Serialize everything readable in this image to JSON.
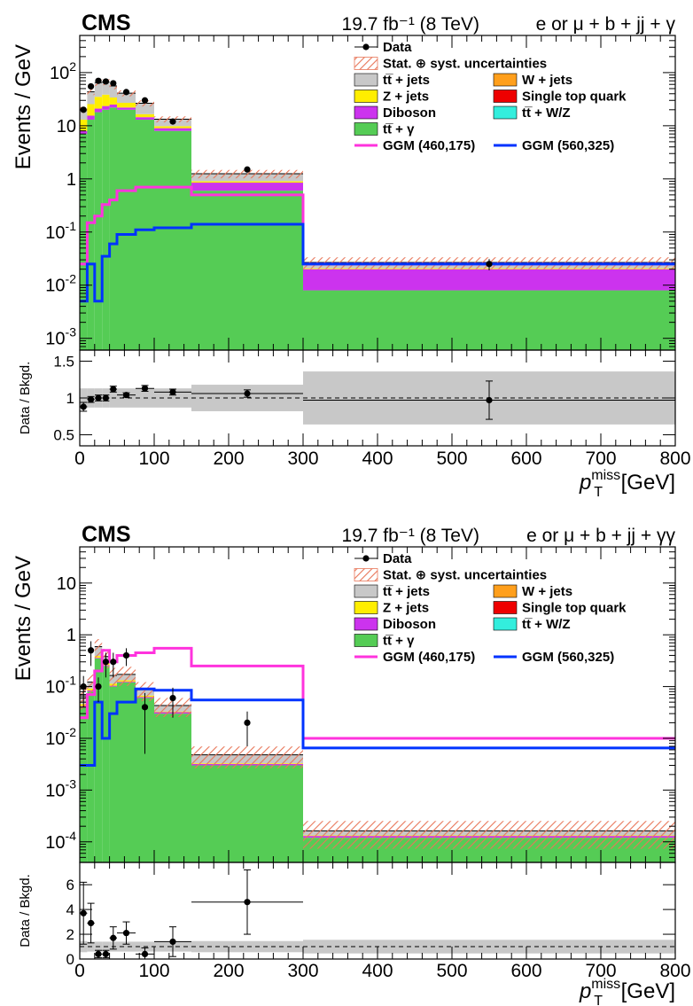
{
  "colors": {
    "data": "#000000",
    "uncert": "#e8775a",
    "ttjets": "#c8c8c8",
    "wjets": "#ff9f1c",
    "zjets": "#ffee00",
    "singletop": "#ee0000",
    "diboson": "#cc33ee",
    "ttvw": "#33eedd",
    "ttgamma": "#55cc55",
    "ggm1": "#ff33dd",
    "ggm2": "#0033ff",
    "ratioband": "#c8c8c8"
  },
  "legend": {
    "data": "Data",
    "uncert": "Stat. ⊕ syst. uncertainties",
    "ttjets": "tt̅ + jets",
    "wjets": "W + jets",
    "zjets": "Z + jets",
    "singletop": "Single top quark",
    "diboson": "Diboson",
    "ttvw": "tt̅ + W/Z",
    "ttgamma": "tt̅ + γ",
    "ggm1": "GGM (460,175)",
    "ggm2": "GGM (560,325)"
  },
  "chart_data": [
    {
      "type": "bar",
      "cms_label": "CMS",
      "lumi_label": "19.7 fb⁻¹ (8 TeV)",
      "channel_label": "e or μ + b + jj + γ",
      "ylabel": "Events / GeV",
      "xlabel": "p_T^miss [GeV]",
      "ratio_ylabel": "Data / Bkgd.",
      "log_y": true,
      "xlim": [
        0,
        800
      ],
      "ylim": [
        0.0006,
        500
      ],
      "ratio_ylim": [
        0.35,
        1.65
      ],
      "ratio_ticks": [
        "0.5",
        "1",
        "1.5"
      ],
      "xticks": [
        "0",
        "100",
        "200",
        "300",
        "400",
        "500",
        "600",
        "700",
        "800"
      ],
      "yticks": [
        "10⁻³",
        "10⁻²",
        "10⁻¹",
        "1",
        "10",
        "10²"
      ],
      "bin_edges": [
        0,
        10,
        20,
        30,
        40,
        50,
        75,
        100,
        150,
        300,
        800
      ],
      "stack": {
        "ttgamma": [
          7.0,
          13,
          18,
          20,
          22,
          20,
          13,
          8.0,
          0.6,
          0.008
        ],
        "diboson": [
          1.0,
          2.5,
          3.0,
          3.5,
          3.0,
          2.0,
          1.5,
          1.0,
          0.25,
          0.012
        ],
        "zjets": [
          5.0,
          10,
          14,
          15,
          9.0,
          5.0,
          2.0,
          0.8,
          0.05,
          0.0008
        ],
        "ttjets": [
          7.0,
          18,
          30,
          28,
          22,
          14,
          10,
          3.5,
          0.35,
          0.006
        ]
      },
      "uncert_frac": [
        0.13,
        0.13,
        0.13,
        0.13,
        0.13,
        0.13,
        0.13,
        0.13,
        0.18,
        0.25
      ],
      "data": [
        {
          "x": 5,
          "y": 20,
          "err": 2
        },
        {
          "x": 15,
          "y": 55,
          "err": 5
        },
        {
          "x": 25,
          "y": 70,
          "err": 6
        },
        {
          "x": 35,
          "y": 68,
          "err": 6
        },
        {
          "x": 45,
          "y": 63,
          "err": 6
        },
        {
          "x": 62.5,
          "y": 43,
          "err": 3
        },
        {
          "x": 87.5,
          "y": 30,
          "err": 3
        },
        {
          "x": 125,
          "y": 12,
          "err": 1
        },
        {
          "x": 225,
          "y": 1.5,
          "err": 0.1
        },
        {
          "x": 550,
          "y": 0.025,
          "err": 0.006
        }
      ],
      "ggm1": [
        0.025,
        0.15,
        0.2,
        0.33,
        0.4,
        0.6,
        0.7,
        0.7,
        0.5,
        0.025
      ],
      "ggm2": [
        0.005,
        0.025,
        0.005,
        0.035,
        0.06,
        0.09,
        0.11,
        0.12,
        0.14,
        0.025
      ],
      "ratio_data": [
        {
          "x": 5,
          "y": 0.88,
          "xerr": 5,
          "err": 0.06
        },
        {
          "x": 15,
          "y": 0.98,
          "xerr": 5,
          "err": 0.04
        },
        {
          "x": 25,
          "y": 1.0,
          "xerr": 5,
          "err": 0.04
        },
        {
          "x": 35,
          "y": 1.0,
          "xerr": 5,
          "err": 0.04
        },
        {
          "x": 45,
          "y": 1.12,
          "xerr": 5,
          "err": 0.04
        },
        {
          "x": 62.5,
          "y": 1.04,
          "xerr": 12.5,
          "err": 0.03
        },
        {
          "x": 87.5,
          "y": 1.13,
          "xerr": 12.5,
          "err": 0.04
        },
        {
          "x": 125,
          "y": 1.08,
          "xerr": 25,
          "err": 0.04
        },
        {
          "x": 225,
          "y": 1.06,
          "xerr": 75,
          "err": 0.05
        },
        {
          "x": 550,
          "y": 0.97,
          "xerr": 250,
          "err": 0.26
        }
      ],
      "ratio_band": [
        0.13,
        0.13,
        0.13,
        0.13,
        0.13,
        0.13,
        0.13,
        0.13,
        0.18,
        0.36
      ]
    },
    {
      "type": "bar",
      "cms_label": "CMS",
      "lumi_label": "19.7 fb⁻¹ (8 TeV)",
      "channel_label": "e or μ + b + jj + γγ",
      "ylabel": "Events / GeV",
      "xlabel": "p_T^miss [GeV]",
      "ratio_ylabel": "Data / Bkgd.",
      "log_y": true,
      "xlim": [
        0,
        800
      ],
      "ylim": [
        4e-05,
        50
      ],
      "ratio_ylim": [
        0,
        7.8
      ],
      "ratio_ticks": [
        "0",
        "2",
        "4",
        "6"
      ],
      "xticks": [
        "0",
        "100",
        "200",
        "300",
        "400",
        "500",
        "600",
        "700",
        "800"
      ],
      "yticks": [
        "10⁻⁴",
        "10⁻³",
        "10⁻²",
        "10⁻¹",
        "1",
        "10"
      ],
      "bin_edges": [
        0,
        10,
        20,
        30,
        40,
        50,
        75,
        100,
        150,
        300,
        800
      ],
      "stack": {
        "ttgamma": [
          0.04,
          0.08,
          0.35,
          0.25,
          0.1,
          0.12,
          0.06,
          0.03,
          0.003,
          0.00012
        ],
        "diboson": [
          0.002,
          0.004,
          0.01,
          0.01,
          0.004,
          0.004,
          0.003,
          0.002,
          0.0002,
          1e-05
        ],
        "zjets": [
          0.004,
          0.008,
          0.03,
          0.02,
          0.01,
          0.008,
          0.004,
          0.001,
          0.0001,
          3e-06
        ],
        "ttjets": [
          0.02,
          0.03,
          0.2,
          0.1,
          0.05,
          0.04,
          0.02,
          0.01,
          0.0015,
          3e-05
        ]
      },
      "uncert_frac": [
        0.45,
        0.4,
        0.4,
        0.4,
        0.4,
        0.4,
        0.4,
        0.4,
        0.45,
        0.55
      ],
      "data": [
        {
          "x": 5,
          "y": 0.1,
          "err": 0.06
        },
        {
          "x": 15,
          "y": 0.5,
          "err": 0.25
        },
        {
          "x": 25,
          "y": 0.1,
          "err": 0.05
        },
        {
          "x": 35,
          "y": 0.3,
          "err": 0.15
        },
        {
          "x": 45,
          "y": 0.3,
          "err": 0.15
        },
        {
          "x": 62.5,
          "y": 0.4,
          "err": 0.15
        },
        {
          "x": 87.5,
          "y": 0.04,
          "err": 0.035
        },
        {
          "x": 125,
          "y": 0.06,
          "err": 0.035
        },
        {
          "x": 225,
          "y": 0.02,
          "err": 0.013
        }
      ],
      "ggm1": [
        0.025,
        0.07,
        0.2,
        0.5,
        0.3,
        0.4,
        0.45,
        0.55,
        0.25,
        0.01
      ],
      "ggm2": [
        0.003,
        0.003,
        0.05,
        0.01,
        0.03,
        0.05,
        0.09,
        0.085,
        0.055,
        0.0065
      ],
      "ratio_data": [
        {
          "x": 5,
          "y": 3.7,
          "xerr": 5,
          "err": 2.5
        },
        {
          "x": 15,
          "y": 2.9,
          "xerr": 5,
          "err": 1.6
        },
        {
          "x": 25,
          "y": 0.4,
          "xerr": 5,
          "err": 0.3
        },
        {
          "x": 35,
          "y": 0.4,
          "xerr": 5,
          "err": 0.3
        },
        {
          "x": 45,
          "y": 1.7,
          "xerr": 5,
          "err": 0.9
        },
        {
          "x": 62.5,
          "y": 2.1,
          "xerr": 12.5,
          "err": 0.9
        },
        {
          "x": 87.5,
          "y": 0.4,
          "xerr": 12.5,
          "err": 0.5
        },
        {
          "x": 125,
          "y": 1.4,
          "xerr": 25,
          "err": 1.2
        },
        {
          "x": 225,
          "y": 4.6,
          "xerr": 75,
          "err": 2.6
        }
      ],
      "ratio_band": [
        0.45,
        0.4,
        0.4,
        0.4,
        0.4,
        0.4,
        0.4,
        0.4,
        0.45,
        0.55
      ]
    }
  ]
}
